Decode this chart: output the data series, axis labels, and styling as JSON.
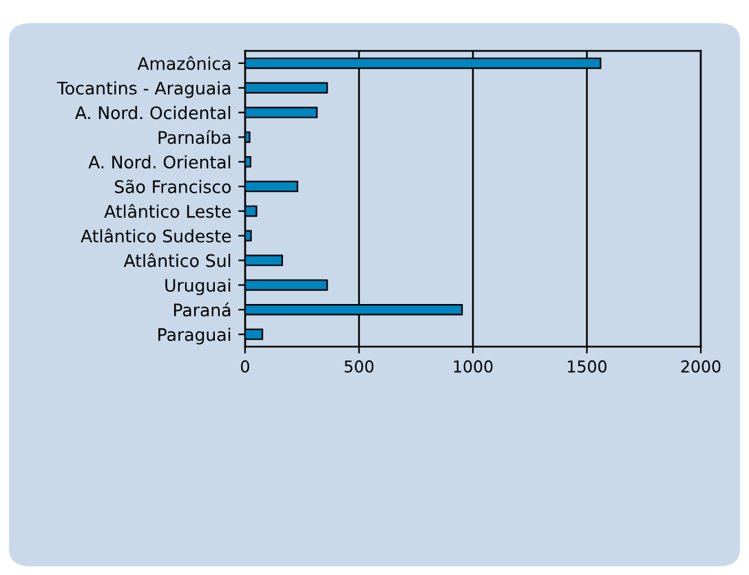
{
  "chart_data": {
    "type": "bar",
    "orientation": "horizontal",
    "categories": [
      "Amazônica",
      "Tocantins - Araguaia",
      "A. Nord. Ocidental",
      "Parnaíba",
      "A. Nord. Oriental",
      "São Francisco",
      "Atlântico Leste",
      "Atlântico Sudeste",
      "Atlântico Sul",
      "Uruguai",
      "Paraná",
      "Paraguai"
    ],
    "values": [
      1560,
      360,
      315,
      20,
      24,
      230,
      50,
      26,
      163,
      360,
      952,
      76
    ],
    "color": "#0085bf",
    "xlim": [
      0,
      2000
    ],
    "xticks": [
      0,
      500,
      1000,
      1500,
      2000
    ],
    "grid": "x"
  }
}
